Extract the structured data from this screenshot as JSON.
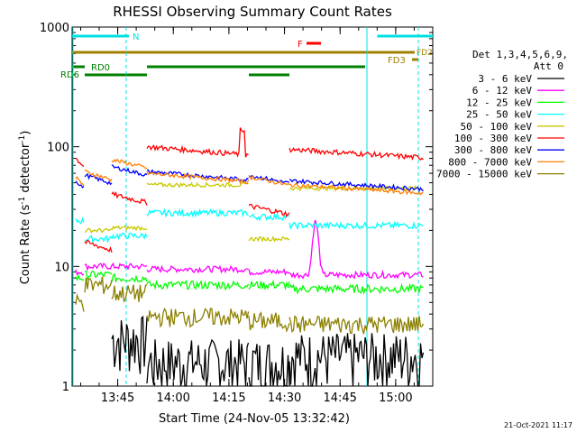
{
  "chart_data": {
    "type": "line",
    "title": "RHESSI Observing Summary Count Rates",
    "xlabel": "Start Time (24-Nov-05 13:32:42)",
    "ylabel_main": "Count Rate (s",
    "ylabel_sup1": "-1",
    "ylabel_mid": " detector",
    "ylabel_sup2": "-1",
    "ylabel_end": ")",
    "y_scale": "log",
    "ylim": [
      1,
      1000
    ],
    "xlim_minutes": [
      13.6,
      15.17
    ],
    "x_ticks": [
      {
        "label": "13:45",
        "value": 13.75
      },
      {
        "label": "14:00",
        "value": 14.0
      },
      {
        "label": "14:15",
        "value": 14.25
      },
      {
        "label": "14:30",
        "value": 14.5
      },
      {
        "label": "14:45",
        "value": 14.75
      },
      {
        "label": "15:00",
        "value": 15.0
      }
    ],
    "y_ticks": [
      {
        "label": "1",
        "value": 1
      },
      {
        "label": "10",
        "value": 10
      },
      {
        "label": "100",
        "value": 100
      },
      {
        "label": "1000",
        "value": 1000
      }
    ],
    "legend_header_line1": "Det 1,3,4,5,6,9,",
    "legend_header_line2": "Att 0",
    "legend_position": "right",
    "series": [
      {
        "name": "3 - 6 keV",
        "color": "#000000"
      },
      {
        "name": "6 - 12 keV",
        "color": "#ff00ff"
      },
      {
        "name": "12 - 25 keV",
        "color": "#00ff00"
      },
      {
        "name": "25 - 50 keV",
        "color": "#00ffff"
      },
      {
        "name": "50 - 100 keV",
        "color": "#c8c800"
      },
      {
        "name": "100 - 300 keV",
        "color": "#ff0000"
      },
      {
        "name": "300 - 800 keV",
        "color": "#0000ff"
      },
      {
        "name": "800 - 7000 keV",
        "color": "#ff8000"
      },
      {
        "name": "7000 - 15000 keV",
        "color": "#8b8000"
      }
    ],
    "flags": [
      {
        "label": "N",
        "color": "#00e0e0"
      },
      {
        "label": "F",
        "color": "#ff0000"
      },
      {
        "label": "FD2",
        "color": "#a08000"
      },
      {
        "label": "FD3",
        "color": "#a08000"
      },
      {
        "label": "RD0",
        "color": "#008000"
      },
      {
        "label": "RD6",
        "color": "#008000"
      }
    ],
    "timestamp": "21-Oct-2021 11:17"
  }
}
